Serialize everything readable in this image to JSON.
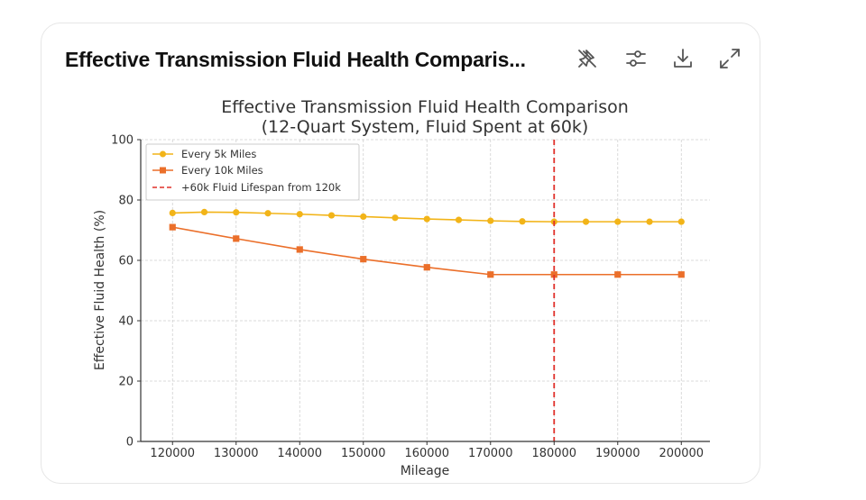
{
  "card": {
    "title": "Effective Transmission Fluid Health Comparis..."
  },
  "toolbar": {
    "icons": [
      "pin-off-icon",
      "sliders-icon",
      "download-icon",
      "expand-icon"
    ]
  },
  "colors": {
    "series_5k": "#f2b418",
    "series_10k": "#eb6f2a",
    "vline": "#e0302a",
    "grid": "#d0d0d0",
    "text": "#333333"
  },
  "chart_data": {
    "type": "line",
    "title_line1": "Effective Transmission Fluid Health Comparison",
    "title_line2": "(12-Quart System, Fluid Spent at 60k)",
    "xlabel": "Mileage",
    "ylabel": "Effective Fluid Health (%)",
    "xlim": [
      115000,
      204500
    ],
    "ylim": [
      0,
      100
    ],
    "xticks": [
      120000,
      130000,
      140000,
      150000,
      160000,
      170000,
      180000,
      190000,
      200000
    ],
    "yticks": [
      0,
      20,
      40,
      60,
      80,
      100
    ],
    "grid": true,
    "legend_position": "top-left",
    "series": [
      {
        "name": "Every 5k Miles",
        "marker": "circle",
        "color": "#f2b418",
        "x": [
          120000,
          125000,
          130000,
          135000,
          140000,
          145000,
          150000,
          155000,
          160000,
          165000,
          170000,
          175000,
          180000,
          185000,
          190000,
          195000,
          200000
        ],
        "y": [
          75.7,
          76.0,
          75.9,
          75.6,
          75.3,
          74.9,
          74.5,
          74.1,
          73.7,
          73.4,
          73.1,
          72.9,
          72.8,
          72.8,
          72.8,
          72.8,
          72.8
        ]
      },
      {
        "name": "Every 10k Miles",
        "marker": "square",
        "color": "#eb6f2a",
        "x": [
          120000,
          130000,
          140000,
          150000,
          160000,
          170000,
          180000,
          190000,
          200000
        ],
        "y": [
          71.0,
          67.2,
          63.6,
          60.4,
          57.7,
          55.3,
          55.3,
          55.3,
          55.3
        ]
      }
    ],
    "vline": {
      "name": "+60k Fluid Lifespan from 120k",
      "x": 180000,
      "style": "dashed",
      "color": "#e0302a"
    }
  }
}
